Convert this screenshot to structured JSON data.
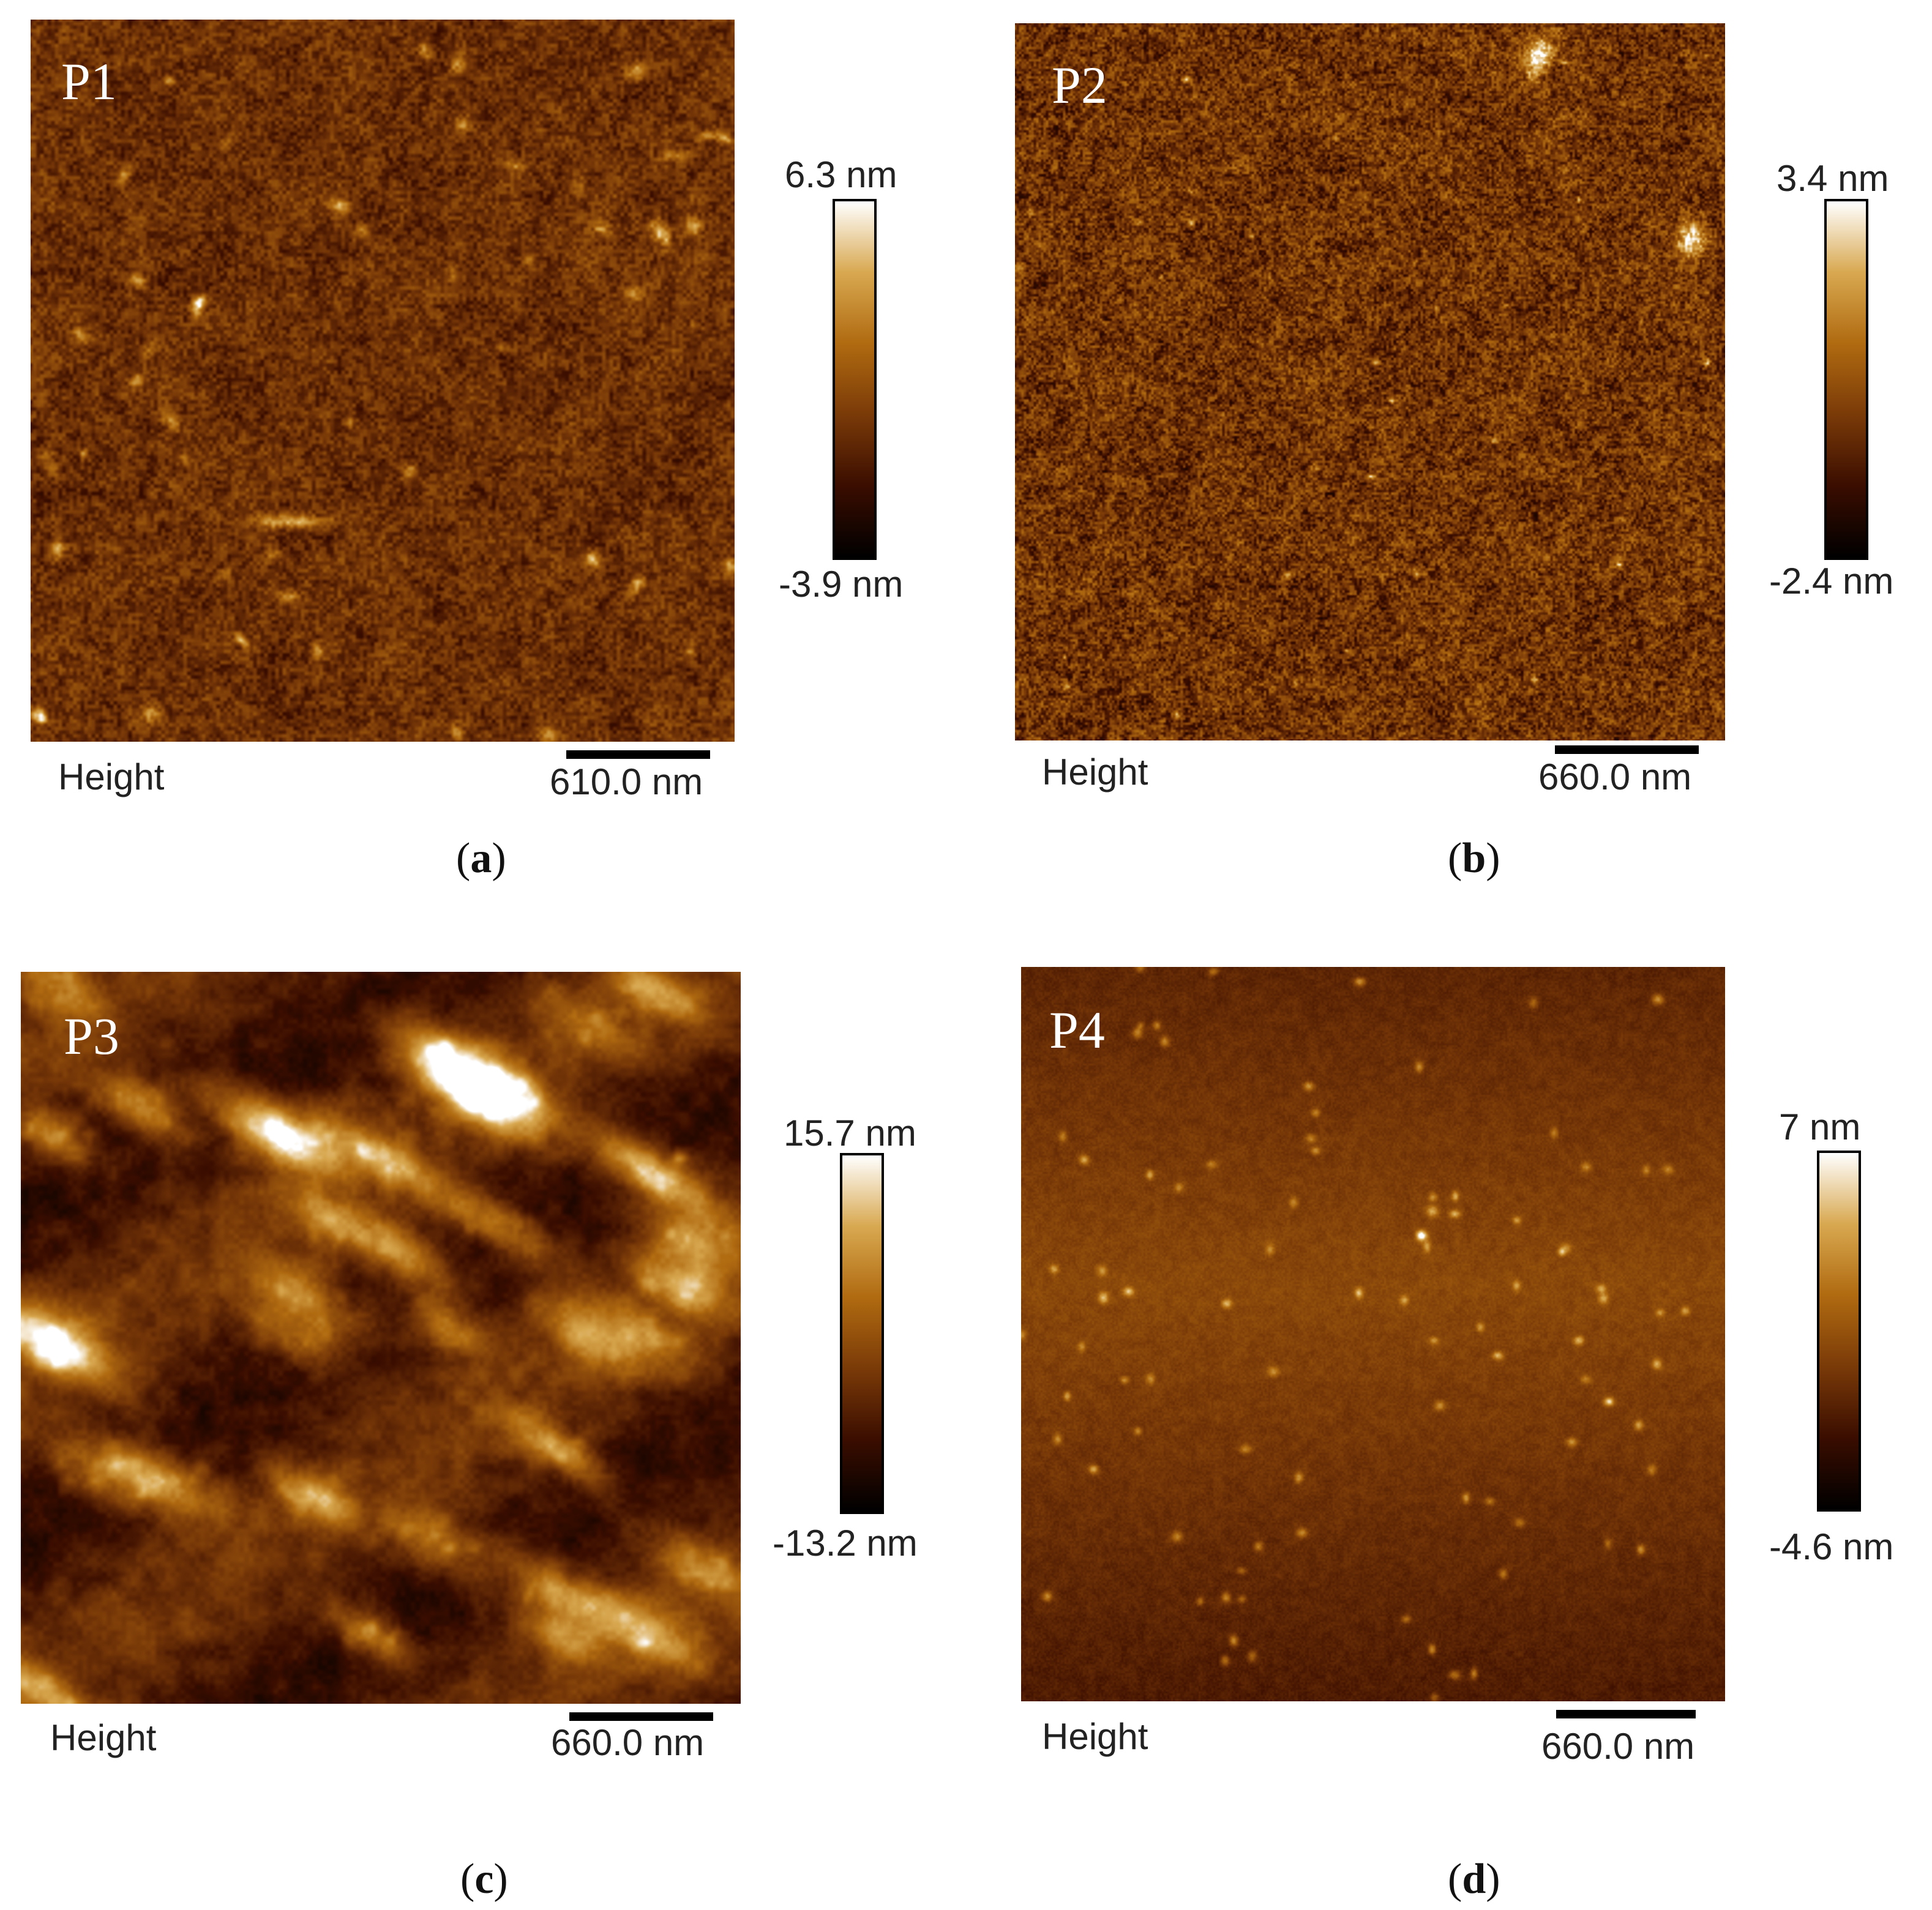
{
  "panels": [
    {
      "id": "a",
      "sample_label": "P1",
      "caption_letter": "a",
      "axis_label": "Height",
      "scale_bar_label": "610.0 nm",
      "colorbar_max": "6.3 nm",
      "colorbar_min": "-3.9 nm",
      "texture": "particles-dense"
    },
    {
      "id": "b",
      "sample_label": "P2",
      "caption_letter": "b",
      "axis_label": "Height",
      "scale_bar_label": "660.0 nm",
      "colorbar_max": "3.4 nm",
      "colorbar_min": "-2.4 nm",
      "texture": "grainy"
    },
    {
      "id": "c",
      "sample_label": "P3",
      "caption_letter": "c",
      "axis_label": "Height",
      "scale_bar_label": "660.0 nm",
      "colorbar_max": "15.7 nm",
      "colorbar_min": "-13.2 nm",
      "texture": "terraced"
    },
    {
      "id": "d",
      "sample_label": "P4",
      "caption_letter": "d",
      "axis_label": "Height",
      "scale_bar_label": "660.0 nm",
      "colorbar_max": "7 nm",
      "colorbar_min": "-4.6 nm",
      "texture": "smooth-dots"
    }
  ],
  "colormap": [
    "#000000",
    "#3a0d00",
    "#7a3a08",
    "#b06a10",
    "#d8a850",
    "#ffffff"
  ]
}
